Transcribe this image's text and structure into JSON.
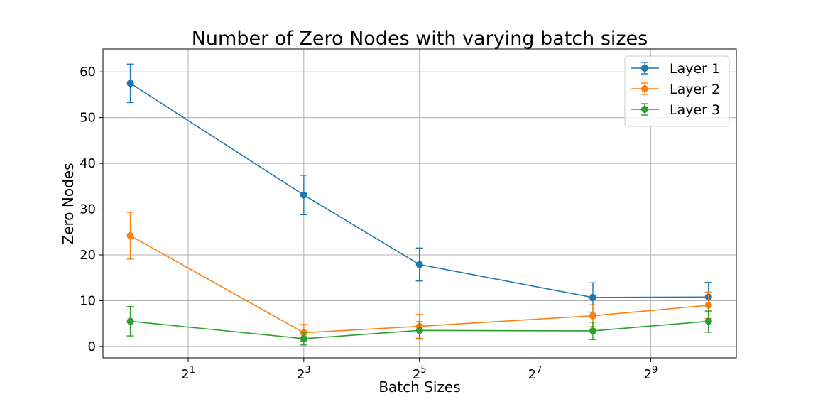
{
  "chart_data": {
    "type": "line",
    "title": "Number of Zero Nodes with varying batch sizes",
    "xlabel": "Batch Sizes",
    "ylabel": "Zero Nodes",
    "x_scale": "log2",
    "x": [
      1,
      8,
      32,
      256,
      1024
    ],
    "xlim": [
      0.72,
      1430
    ],
    "ylim": [
      -2.5,
      65
    ],
    "x_ticks": [
      {
        "value": 2,
        "base": "2",
        "exp": "1"
      },
      {
        "value": 8,
        "base": "2",
        "exp": "3"
      },
      {
        "value": 32,
        "base": "2",
        "exp": "5"
      },
      {
        "value": 128,
        "base": "2",
        "exp": "7"
      },
      {
        "value": 512,
        "base": "2",
        "exp": "9"
      }
    ],
    "y_ticks": [
      0,
      10,
      20,
      30,
      40,
      50,
      60
    ],
    "grid": true,
    "legend_position": "top-right",
    "series": [
      {
        "name": "Layer 1",
        "color": "#1f77b4",
        "values": [
          57.5,
          33.1,
          17.9,
          10.7,
          10.8
        ],
        "err": [
          4.2,
          4.3,
          3.6,
          3.2,
          3.2
        ]
      },
      {
        "name": "Layer 2",
        "color": "#ff7f0e",
        "values": [
          24.2,
          3.0,
          4.4,
          6.7,
          9.0
        ],
        "err": [
          5.1,
          1.8,
          2.6,
          2.4,
          2.9
        ]
      },
      {
        "name": "Layer 3",
        "color": "#2ca02c",
        "values": [
          5.5,
          1.7,
          3.5,
          3.4,
          5.5
        ],
        "err": [
          3.2,
          1.4,
          1.9,
          1.9,
          2.4
        ]
      }
    ]
  }
}
